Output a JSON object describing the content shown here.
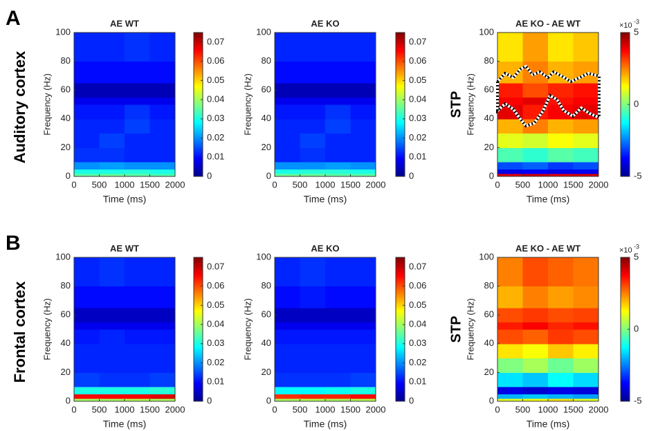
{
  "panels": [
    {
      "letter": "A",
      "label": "Auditory cortex"
    },
    {
      "letter": "B",
      "label": "Frontal cortex"
    }
  ],
  "chart_data": [
    {
      "type": "heatmap",
      "title": "AE WT",
      "xlabel": "Time (ms)",
      "ylabel": "Frequency (Hz)",
      "colormap": "jet",
      "x_edges": [
        0,
        500,
        1000,
        1500,
        2000
      ],
      "y_edges": [
        0,
        2,
        5,
        10,
        20,
        30,
        40,
        50,
        55,
        65,
        80,
        100
      ],
      "z": [
        [
          0.035,
          0.036,
          0.035,
          0.034
        ],
        [
          0.03,
          0.03,
          0.031,
          0.03
        ],
        [
          0.02,
          0.021,
          0.02,
          0.02
        ],
        [
          0.013,
          0.013,
          0.012,
          0.012
        ],
        [
          0.012,
          0.014,
          0.012,
          0.012
        ],
        [
          0.012,
          0.012,
          0.014,
          0.012
        ],
        [
          0.011,
          0.011,
          0.013,
          0.011
        ],
        [
          0.008,
          0.008,
          0.008,
          0.008
        ],
        [
          0.004,
          0.004,
          0.004,
          0.004
        ],
        [
          0.01,
          0.01,
          0.01,
          0.01
        ],
        [
          0.012,
          0.012,
          0.013,
          0.012
        ]
      ],
      "xlim": [
        0,
        2000
      ],
      "ylim": [
        0,
        100
      ],
      "xticks": [
        0,
        500,
        1000,
        1500,
        2000
      ],
      "yticks": [
        0,
        20,
        40,
        60,
        80,
        100
      ],
      "clim": [
        0,
        0.075
      ],
      "cticks": [
        0,
        0.01,
        0.02,
        0.03,
        0.04,
        0.05,
        0.06,
        0.07
      ]
    },
    {
      "type": "heatmap",
      "title": "AE KO",
      "xlabel": "Time (ms)",
      "ylabel": "Frequency (Hz)",
      "colorbar_label": "STP",
      "colormap": "jet",
      "x_edges": [
        0,
        500,
        1000,
        1500,
        2000
      ],
      "y_edges": [
        0,
        2,
        5,
        10,
        20,
        30,
        40,
        50,
        55,
        65,
        80,
        100
      ],
      "z": [
        [
          0.036,
          0.036,
          0.035,
          0.035
        ],
        [
          0.03,
          0.031,
          0.031,
          0.03
        ],
        [
          0.02,
          0.02,
          0.021,
          0.02
        ],
        [
          0.012,
          0.013,
          0.012,
          0.012
        ],
        [
          0.012,
          0.014,
          0.012,
          0.012
        ],
        [
          0.012,
          0.012,
          0.014,
          0.012
        ],
        [
          0.011,
          0.011,
          0.013,
          0.011
        ],
        [
          0.008,
          0.008,
          0.008,
          0.008
        ],
        [
          0.004,
          0.004,
          0.004,
          0.004
        ],
        [
          0.01,
          0.01,
          0.01,
          0.01
        ],
        [
          0.012,
          0.012,
          0.012,
          0.012
        ]
      ],
      "xlim": [
        0,
        2000
      ],
      "ylim": [
        0,
        100
      ],
      "xticks": [
        0,
        500,
        1000,
        1500,
        2000
      ],
      "yticks": [
        0,
        20,
        40,
        60,
        80,
        100
      ],
      "clim": [
        0,
        0.075
      ],
      "cticks": [
        0,
        0.01,
        0.02,
        0.03,
        0.04,
        0.05,
        0.06,
        0.07
      ]
    },
    {
      "type": "heatmap",
      "title": "AE KO - AE WT",
      "xlabel": "Time (ms)",
      "ylabel": "Frequency (Hz)",
      "colormap": "jet",
      "x_edges": [
        0,
        500,
        1000,
        1500,
        2000
      ],
      "y_edges": [
        0,
        2,
        5,
        10,
        20,
        30,
        40,
        50,
        55,
        65,
        80,
        100
      ],
      "z": [
        [
          0.004,
          0.0042,
          0.004,
          0.0041
        ],
        [
          -0.004,
          -0.0038,
          -0.004,
          -0.0039
        ],
        [
          -0.003,
          -0.0028,
          -0.0032,
          -0.003
        ],
        [
          -0.0005,
          -0.0008,
          -0.0004,
          -0.0006
        ],
        [
          0.001,
          0.0008,
          0.0012,
          0.001
        ],
        [
          0.002,
          0.0025,
          0.002,
          0.0022
        ],
        [
          0.004,
          0.0035,
          0.0038,
          0.004
        ],
        [
          0.0038,
          0.004,
          0.0036,
          0.0038
        ],
        [
          0.0035,
          0.003,
          0.0034,
          0.0036
        ],
        [
          0.002,
          0.0025,
          0.002,
          0.0022
        ],
        [
          0.0015,
          0.0022,
          0.0015,
          0.0018
        ]
      ],
      "xlim": [
        0,
        2000
      ],
      "ylim": [
        0,
        100
      ],
      "xticks": [
        0,
        500,
        1000,
        1500,
        2000
      ],
      "yticks": [
        0,
        20,
        40,
        60,
        80,
        100
      ],
      "clim": [
        -0.005,
        0.005
      ],
      "cticks": [
        {
          "value": -0.005,
          "label": "-5"
        },
        0,
        {
          "value": 0.005,
          "label": "5"
        }
      ],
      "colorbar_multiplier": "×10",
      "colorbar_exponent": "-3"
    },
    {
      "type": "heatmap",
      "title": "AE WT",
      "xlabel": "Time (ms)",
      "ylabel": "Frequency (Hz)",
      "colormap": "jet",
      "x_edges": [
        0,
        500,
        1000,
        1500,
        2000
      ],
      "y_edges": [
        0,
        2,
        5,
        10,
        20,
        30,
        40,
        50,
        55,
        65,
        80,
        100
      ],
      "z": [
        [
          0.04,
          0.04,
          0.041,
          0.04
        ],
        [
          0.065,
          0.066,
          0.066,
          0.068
        ],
        [
          0.03,
          0.03,
          0.03,
          0.031
        ],
        [
          0.014,
          0.013,
          0.013,
          0.014
        ],
        [
          0.012,
          0.012,
          0.012,
          0.012
        ],
        [
          0.012,
          0.012,
          0.012,
          0.012
        ],
        [
          0.011,
          0.012,
          0.011,
          0.011
        ],
        [
          0.008,
          0.008,
          0.008,
          0.008
        ],
        [
          0.005,
          0.005,
          0.005,
          0.005
        ],
        [
          0.01,
          0.01,
          0.01,
          0.01
        ],
        [
          0.012,
          0.013,
          0.012,
          0.012
        ]
      ],
      "xlim": [
        0,
        2000
      ],
      "ylim": [
        0,
        100
      ],
      "xticks": [
        0,
        500,
        1000,
        1500,
        2000
      ],
      "yticks": [
        0,
        20,
        40,
        60,
        80,
        100
      ],
      "clim": [
        0,
        0.075
      ],
      "cticks": [
        0,
        0.01,
        0.02,
        0.03,
        0.04,
        0.05,
        0.06,
        0.07
      ]
    },
    {
      "type": "heatmap",
      "title": "AE KO",
      "xlabel": "Time (ms)",
      "ylabel": "Frequency (Hz)",
      "colorbar_label": "STP",
      "colormap": "jet",
      "x_edges": [
        0,
        500,
        1000,
        1500,
        2000
      ],
      "y_edges": [
        0,
        2,
        5,
        10,
        20,
        30,
        40,
        50,
        55,
        65,
        80,
        100
      ],
      "z": [
        [
          0.04,
          0.041,
          0.04,
          0.041
        ],
        [
          0.062,
          0.063,
          0.063,
          0.065
        ],
        [
          0.028,
          0.028,
          0.029,
          0.03
        ],
        [
          0.013,
          0.013,
          0.013,
          0.014
        ],
        [
          0.012,
          0.012,
          0.012,
          0.012
        ],
        [
          0.012,
          0.012,
          0.012,
          0.012
        ],
        [
          0.011,
          0.011,
          0.011,
          0.011
        ],
        [
          0.008,
          0.008,
          0.008,
          0.008
        ],
        [
          0.005,
          0.005,
          0.005,
          0.005
        ],
        [
          0.01,
          0.011,
          0.01,
          0.01
        ],
        [
          0.012,
          0.013,
          0.012,
          0.012
        ]
      ],
      "xlim": [
        0,
        2000
      ],
      "ylim": [
        0,
        100
      ],
      "xticks": [
        0,
        500,
        1000,
        1500,
        2000
      ],
      "yticks": [
        0,
        20,
        40,
        60,
        80,
        100
      ],
      "clim": [
        0,
        0.075
      ],
      "cticks": [
        0,
        0.01,
        0.02,
        0.03,
        0.04,
        0.05,
        0.06,
        0.07
      ]
    },
    {
      "type": "heatmap",
      "title": "AE KO - AE WT",
      "xlabel": "Time (ms)",
      "ylabel": "Frequency (Hz)",
      "colormap": "jet",
      "x_edges": [
        0,
        500,
        1000,
        1500,
        2000
      ],
      "y_edges": [
        0,
        2,
        5,
        10,
        20,
        30,
        40,
        50,
        55,
        65,
        80,
        100
      ],
      "z": [
        [
          0.001,
          0.0012,
          0.0015,
          0.001
        ],
        [
          -0.002,
          -0.0018,
          -0.002,
          -0.0022
        ],
        [
          -0.004,
          -0.0042,
          -0.004,
          -0.0041
        ],
        [
          -0.0015,
          -0.0018,
          -0.0012,
          -0.0016
        ],
        [
          0.0,
          0.0004,
          -0.0002,
          0.0003
        ],
        [
          0.0015,
          0.0012,
          0.0018,
          0.0014
        ],
        [
          0.003,
          0.0028,
          0.0032,
          0.003
        ],
        [
          0.0035,
          0.0038,
          0.0034,
          0.0036
        ],
        [
          0.003,
          0.0032,
          0.003,
          0.0031
        ],
        [
          0.002,
          0.0025,
          0.0022,
          0.0024
        ],
        [
          0.0025,
          0.003,
          0.0028,
          0.0026
        ]
      ],
      "xlim": [
        0,
        2000
      ],
      "ylim": [
        0,
        100
      ],
      "xticks": [
        0,
        500,
        1000,
        1500,
        2000
      ],
      "yticks": [
        0,
        20,
        40,
        60,
        80,
        100
      ],
      "clim": [
        -0.005,
        0.005
      ],
      "cticks": [
        {
          "value": -0.005,
          "label": "-5"
        },
        0,
        {
          "value": 0.005,
          "label": "5"
        }
      ],
      "colorbar_multiplier": "×10",
      "colorbar_exponent": "-3"
    }
  ]
}
